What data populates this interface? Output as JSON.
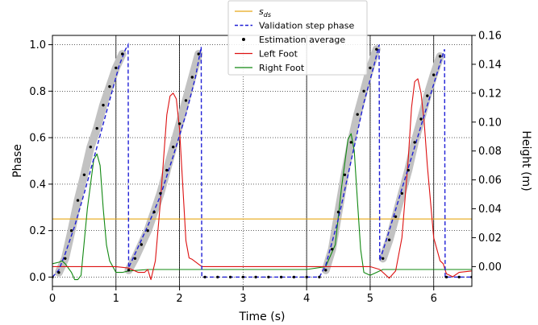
{
  "chart_data": {
    "type": "line",
    "title": "",
    "xlabel": "Time (s)",
    "ylabel_left": "Phase",
    "ylabel_right": "Height (m)",
    "xlim": [
      0,
      6.6
    ],
    "ylim_left": [
      -0.04,
      1.04
    ],
    "ylim_right": [
      -0.0137,
      0.16
    ],
    "xticks": [
      0,
      1,
      2,
      3,
      4,
      5,
      6
    ],
    "yticks_left": [
      0.0,
      0.2,
      0.4,
      0.6,
      0.8,
      1.0
    ],
    "yticks_left_labels": [
      "0.0",
      "0.2",
      "0.4",
      "0.6",
      "0.8",
      "1.0"
    ],
    "yticks_right": [
      0.0,
      0.02,
      0.04,
      0.06,
      0.08,
      0.1,
      0.12,
      0.14,
      0.16
    ],
    "yticks_right_labels": [
      "0.00",
      "0.02",
      "0.04",
      "0.06",
      "0.08",
      "0.10",
      "0.12",
      "0.14",
      "0.16"
    ],
    "grid": true,
    "grid_style": "dotted",
    "vlines_x": [
      1.0,
      2.0,
      4.0,
      5.0,
      6.0
    ],
    "legend_position": "top-center",
    "legend": [
      {
        "label": "s",
        "label_sub": "ds",
        "color": "#e6a817",
        "style": "line"
      },
      {
        "label": "Validation step phase",
        "color": "#1f1fd6",
        "style": "dashed"
      },
      {
        "label": "Estimation average",
        "color": "#000000",
        "style": "dot"
      },
      {
        "label": "Left Foot",
        "color": "#dd1111",
        "style": "line"
      },
      {
        "label": "Right Foot",
        "color": "#118811",
        "style": "line"
      }
    ],
    "series": [
      {
        "name": "s_ds",
        "axis": "left",
        "color": "#e6a817",
        "x": [
          0,
          6.6
        ],
        "y": [
          0.25,
          0.25
        ]
      },
      {
        "name": "Validation step phase",
        "axis": "left",
        "color": "#1f1fd6",
        "x": [
          0,
          0.1,
          0.2,
          0.35,
          0.5,
          0.7,
          0.9,
          1.05,
          1.15,
          1.19,
          1.2,
          1.3,
          1.5,
          1.7,
          1.9,
          2.1,
          2.25,
          2.34,
          2.35,
          4.2,
          4.3,
          4.5,
          4.7,
          4.9,
          5.05,
          5.14,
          5.15,
          5.3,
          5.5,
          5.7,
          5.9,
          6.1,
          6.17,
          6.18,
          6.6
        ],
        "y": [
          0.0,
          0.03,
          0.1,
          0.22,
          0.36,
          0.56,
          0.76,
          0.91,
          0.98,
          1.0,
          0.04,
          0.1,
          0.22,
          0.35,
          0.52,
          0.7,
          0.86,
          0.99,
          0.0,
          0.0,
          0.05,
          0.25,
          0.5,
          0.75,
          0.9,
          1.0,
          0.07,
          0.2,
          0.38,
          0.56,
          0.74,
          0.92,
          0.98,
          0.0,
          0.0
        ]
      },
      {
        "name": "Estimation average",
        "axis": "left",
        "color": "#000000",
        "x": [
          0.0,
          0.1,
          0.2,
          0.3,
          0.4,
          0.5,
          0.6,
          0.7,
          0.8,
          0.9,
          1.0,
          1.1,
          1.2,
          1.3,
          1.4,
          1.5,
          1.6,
          1.7,
          1.8,
          1.9,
          2.0,
          2.1,
          2.2,
          2.3,
          2.4,
          2.6,
          2.8,
          3.0,
          3.2,
          3.4,
          3.6,
          3.8,
          4.0,
          4.2,
          4.3,
          4.4,
          4.5,
          4.6,
          4.7,
          4.8,
          4.9,
          5.0,
          5.1,
          5.2,
          5.3,
          5.4,
          5.5,
          5.6,
          5.7,
          5.8,
          5.9,
          6.0,
          6.1,
          6.2,
          6.4,
          6.6
        ],
        "y": [
          0.0,
          0.02,
          0.08,
          0.2,
          0.33,
          0.44,
          0.56,
          0.64,
          0.74,
          0.82,
          0.9,
          0.96,
          0.03,
          0.08,
          0.14,
          0.2,
          0.28,
          0.36,
          0.46,
          0.56,
          0.66,
          0.76,
          0.86,
          0.96,
          0.0,
          0.0,
          0.0,
          0.0,
          0.0,
          0.0,
          0.0,
          0.0,
          0.0,
          0.0,
          0.03,
          0.12,
          0.28,
          0.44,
          0.58,
          0.7,
          0.8,
          0.9,
          0.98,
          0.08,
          0.16,
          0.26,
          0.36,
          0.46,
          0.58,
          0.68,
          0.78,
          0.87,
          0.95,
          0.0,
          0.0,
          0.0
        ]
      },
      {
        "name": "Left Foot",
        "axis": "right",
        "color": "#dd1111",
        "x": [
          0.0,
          0.5,
          1.0,
          1.2,
          1.35,
          1.45,
          1.5,
          1.55,
          1.62,
          1.7,
          1.8,
          1.85,
          1.9,
          1.95,
          2.0,
          2.1,
          2.15,
          2.2,
          2.35,
          3.0,
          4.0,
          4.2,
          4.3,
          4.5,
          5.0,
          5.15,
          5.3,
          5.4,
          5.5,
          5.6,
          5.65,
          5.7,
          5.75,
          5.8,
          5.85,
          5.9,
          6.0,
          6.1,
          6.15,
          6.2,
          6.3,
          6.4,
          6.6
        ],
        "y": [
          0.0,
          0.0,
          0.0,
          -0.001,
          -0.004,
          -0.004,
          -0.002,
          -0.009,
          0.004,
          0.045,
          0.105,
          0.118,
          0.12,
          0.116,
          0.095,
          0.018,
          0.006,
          0.005,
          0.0,
          0.0,
          0.0,
          0.0,
          0.0,
          0.0,
          0.0,
          -0.002,
          -0.008,
          -0.003,
          0.02,
          0.075,
          0.11,
          0.128,
          0.13,
          0.12,
          0.1,
          0.07,
          0.02,
          0.004,
          0.002,
          -0.005,
          -0.007,
          -0.004,
          -0.003
        ]
      },
      {
        "name": "Right Foot",
        "axis": "right",
        "color": "#118811",
        "x": [
          0.0,
          0.1,
          0.15,
          0.2,
          0.3,
          0.35,
          0.4,
          0.45,
          0.55,
          0.65,
          0.7,
          0.75,
          0.8,
          0.85,
          0.9,
          1.0,
          1.1,
          1.2,
          1.5,
          2.0,
          2.5,
          3.0,
          3.5,
          4.0,
          4.3,
          4.45,
          4.55,
          4.65,
          4.7,
          4.75,
          4.8,
          4.85,
          4.9,
          5.0,
          5.1,
          5.2,
          5.6,
          6.0,
          6.6
        ],
        "y": [
          0.002,
          0.003,
          0.004,
          0.002,
          -0.004,
          -0.009,
          -0.009,
          -0.006,
          0.04,
          0.074,
          0.078,
          0.07,
          0.04,
          0.015,
          0.004,
          -0.004,
          -0.004,
          -0.003,
          -0.002,
          -0.002,
          -0.002,
          -0.002,
          -0.002,
          -0.002,
          0.0,
          0.015,
          0.055,
          0.088,
          0.092,
          0.08,
          0.045,
          0.012,
          -0.004,
          -0.006,
          -0.004,
          -0.002,
          -0.002,
          -0.002,
          -0.002
        ]
      }
    ]
  }
}
